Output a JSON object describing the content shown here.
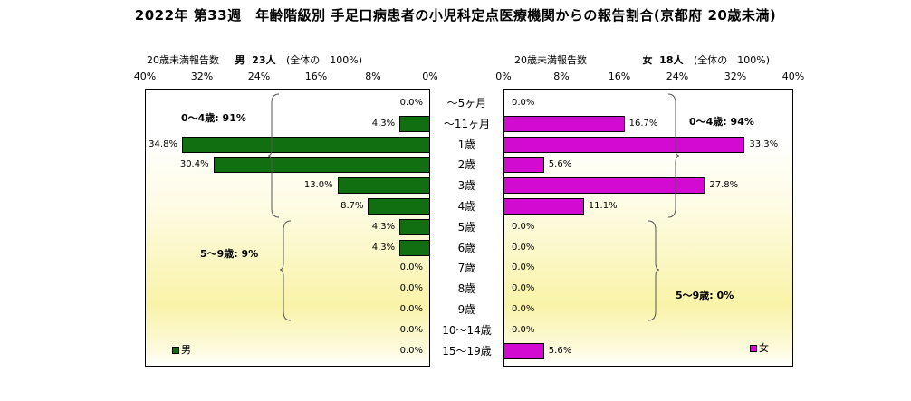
{
  "title": "2022年 第33週　年齢階級別 手足口病患者の小児科定点医療機関からの報告割合(京都府 20歳未満)",
  "left_header": {
    "label": "20歳未満報告数",
    "sex": "男",
    "count": "23人",
    "total": "(全体の　100%)"
  },
  "right_header": {
    "label": "20歳未満報告数",
    "sex": "女",
    "count": "18人",
    "total": "(全体の　100%)"
  },
  "colors": {
    "male": "#116e11",
    "female": "#d20ad2"
  },
  "chart_data": {
    "type": "bar",
    "orientation": "horizontal-population-pyramid",
    "categories": [
      "～5ヶ月",
      "～11ヶ月",
      "1歳",
      "2歳",
      "3歳",
      "4歳",
      "5歳",
      "6歳",
      "7歳",
      "8歳",
      "9歳",
      "10～14歳",
      "15～19歳"
    ],
    "series": [
      {
        "name": "男",
        "values": [
          0.0,
          4.3,
          34.8,
          30.4,
          13.0,
          8.7,
          4.3,
          4.3,
          0.0,
          0.0,
          0.0,
          0.0,
          0.0
        ],
        "labels": [
          "0.0%",
          "4.3%",
          "34.8%",
          "30.4%",
          "13.0%",
          "8.7%",
          "4.3%",
          "4.3%",
          "0.0%",
          "0.0%",
          "0.0%",
          "0.0%",
          "0.0%"
        ]
      },
      {
        "name": "女",
        "values": [
          0.0,
          16.7,
          33.3,
          5.6,
          27.8,
          11.1,
          0.0,
          0.0,
          0.0,
          0.0,
          0.0,
          0.0,
          5.6
        ],
        "labels": [
          "0.0%",
          "16.7%",
          "33.3%",
          "5.6%",
          "27.8%",
          "11.1%",
          "0.0%",
          "0.0%",
          "0.0%",
          "0.0%",
          "0.0%",
          "0.0%",
          "5.6%"
        ]
      }
    ],
    "left_ticks": [
      "40%",
      "32%",
      "24%",
      "16%",
      "8%",
      "0%"
    ],
    "right_ticks": [
      "0%",
      "8%",
      "16%",
      "24%",
      "32%",
      "40%"
    ],
    "xlim": [
      0,
      40
    ],
    "annotations": {
      "male_0_4": "0～4歳: 91%",
      "male_5_9": "5～9歳: 9%",
      "female_0_4": "0～4歳: 94%",
      "female_5_9": "5～9歳: 0%"
    },
    "legend": {
      "male": "男",
      "female": "女"
    }
  }
}
